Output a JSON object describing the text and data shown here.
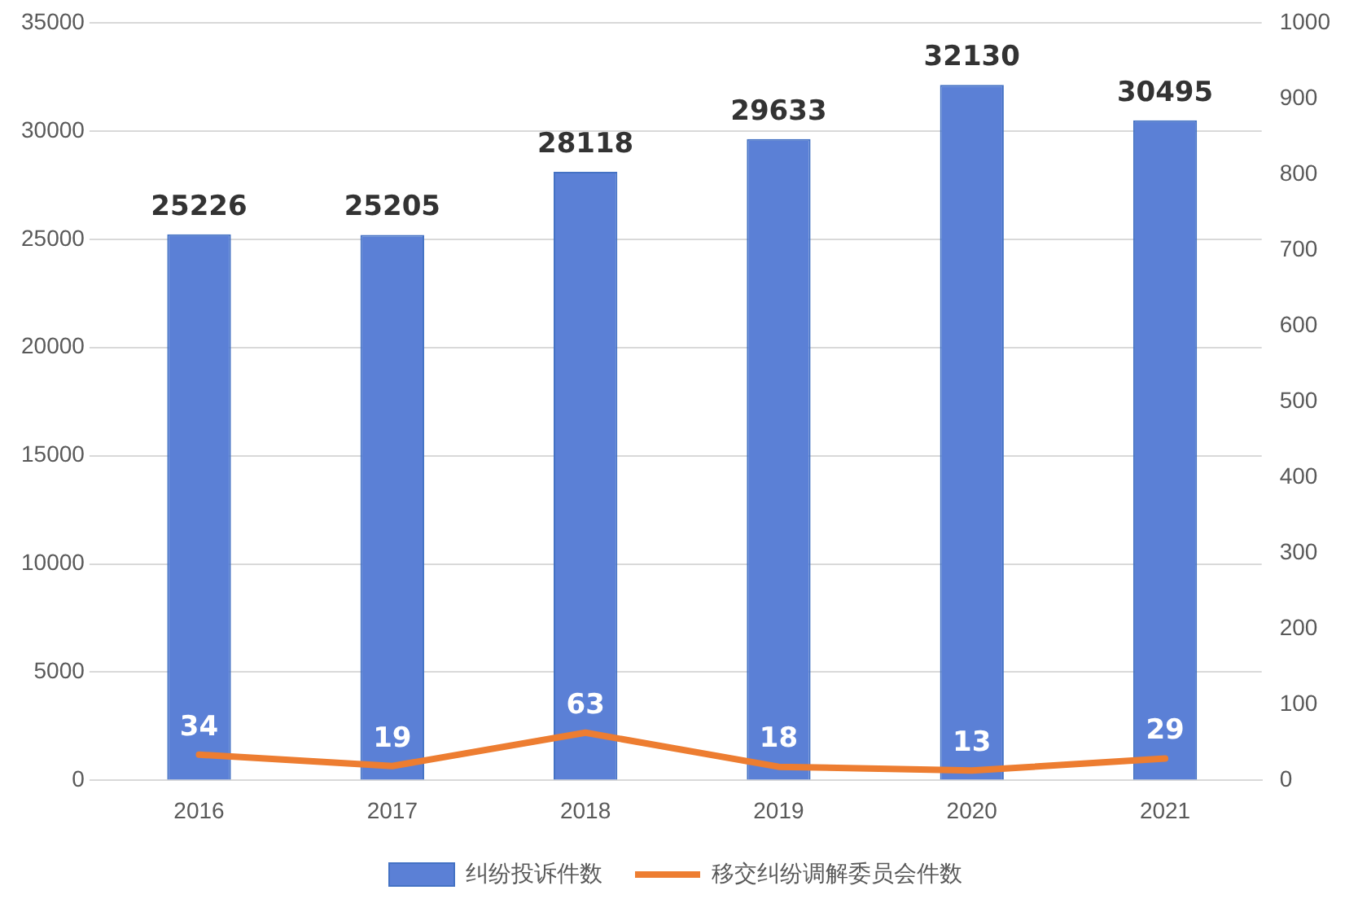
{
  "chart_data": {
    "type": "bar",
    "categories": [
      "2016",
      "2017",
      "2018",
      "2019",
      "2020",
      "2021"
    ],
    "series": [
      {
        "name": "纠纷投诉件数",
        "color": "#5b80d6",
        "values": [
          25226,
          25205,
          28118,
          29633,
          32130,
          30495
        ]
      },
      {
        "name": "移交纠纷调解委员会件数",
        "type": "line",
        "axis": "y2",
        "color": "#ed7d31",
        "values": [
          34,
          19,
          63,
          18,
          13,
          29
        ]
      }
    ],
    "ylim": [
      0,
      35000
    ],
    "yticks": [
      0,
      5000,
      10000,
      15000,
      20000,
      25000,
      30000,
      35000
    ],
    "y2lim": [
      0,
      1000
    ],
    "y2ticks": [
      0,
      100,
      200,
      300,
      400,
      500,
      600,
      700,
      800,
      900,
      1000
    ],
    "grid": "y",
    "legend": "bottom",
    "data_labels": true,
    "marker": "none"
  }
}
